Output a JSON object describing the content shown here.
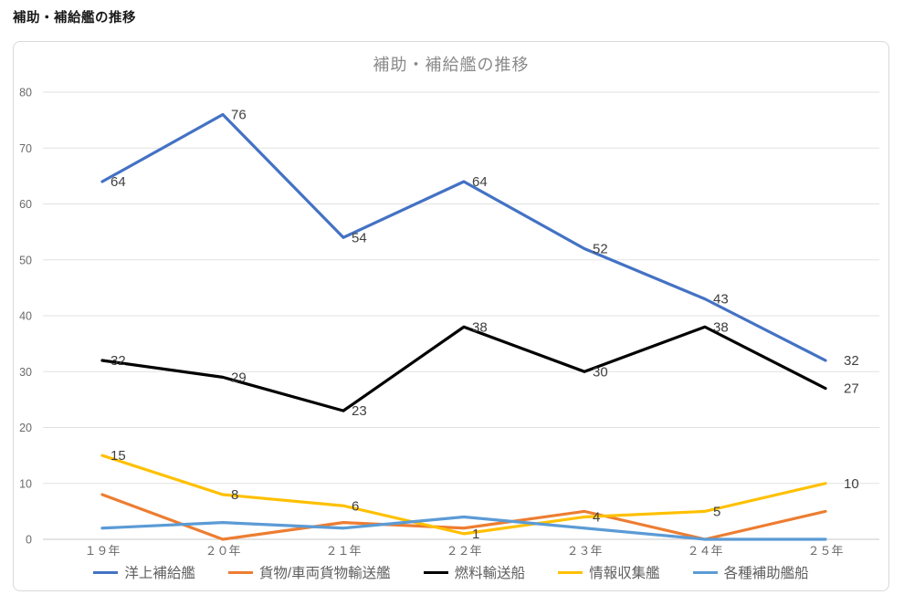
{
  "page": {
    "title": "補助・補給艦の推移"
  },
  "chart_data": {
    "type": "line",
    "title": "補助・補給艦の推移",
    "categories": [
      "１９年",
      "２０年",
      "２１年",
      "２２年",
      "２３年",
      "２４年",
      "２５年"
    ],
    "series": [
      {
        "name": "洋上補給艦",
        "color": "#4472C4",
        "values": [
          64,
          76,
          54,
          64,
          52,
          43,
          32
        ],
        "data_labels": true
      },
      {
        "name": "貨物/車両貨物輸送艦",
        "color": "#ED7D31",
        "values": [
          8,
          0,
          3,
          2,
          5,
          0,
          5
        ],
        "data_labels": false
      },
      {
        "name": "燃料輸送船",
        "color": "#000000",
        "values": [
          32,
          29,
          23,
          38,
          30,
          38,
          27
        ],
        "data_labels": true
      },
      {
        "name": "情報収集艦",
        "color": "#FFC000",
        "values": [
          15,
          8,
          6,
          1,
          4,
          5,
          10
        ],
        "data_labels": true
      },
      {
        "name": "各種補助艦船",
        "color": "#5B9BD5",
        "values": [
          2,
          3,
          2,
          4,
          2,
          0,
          0
        ],
        "data_labels": false
      }
    ],
    "ylim": [
      0,
      80
    ],
    "ytick_step": 10,
    "grid": true,
    "legend_position": "bottom",
    "colors": {
      "gridline": "#e2e2e2",
      "axis_line": "#c9c9c9",
      "tick_label": "#6a6a6a",
      "data_label": "#404040",
      "title": "#8a8a8a"
    }
  }
}
